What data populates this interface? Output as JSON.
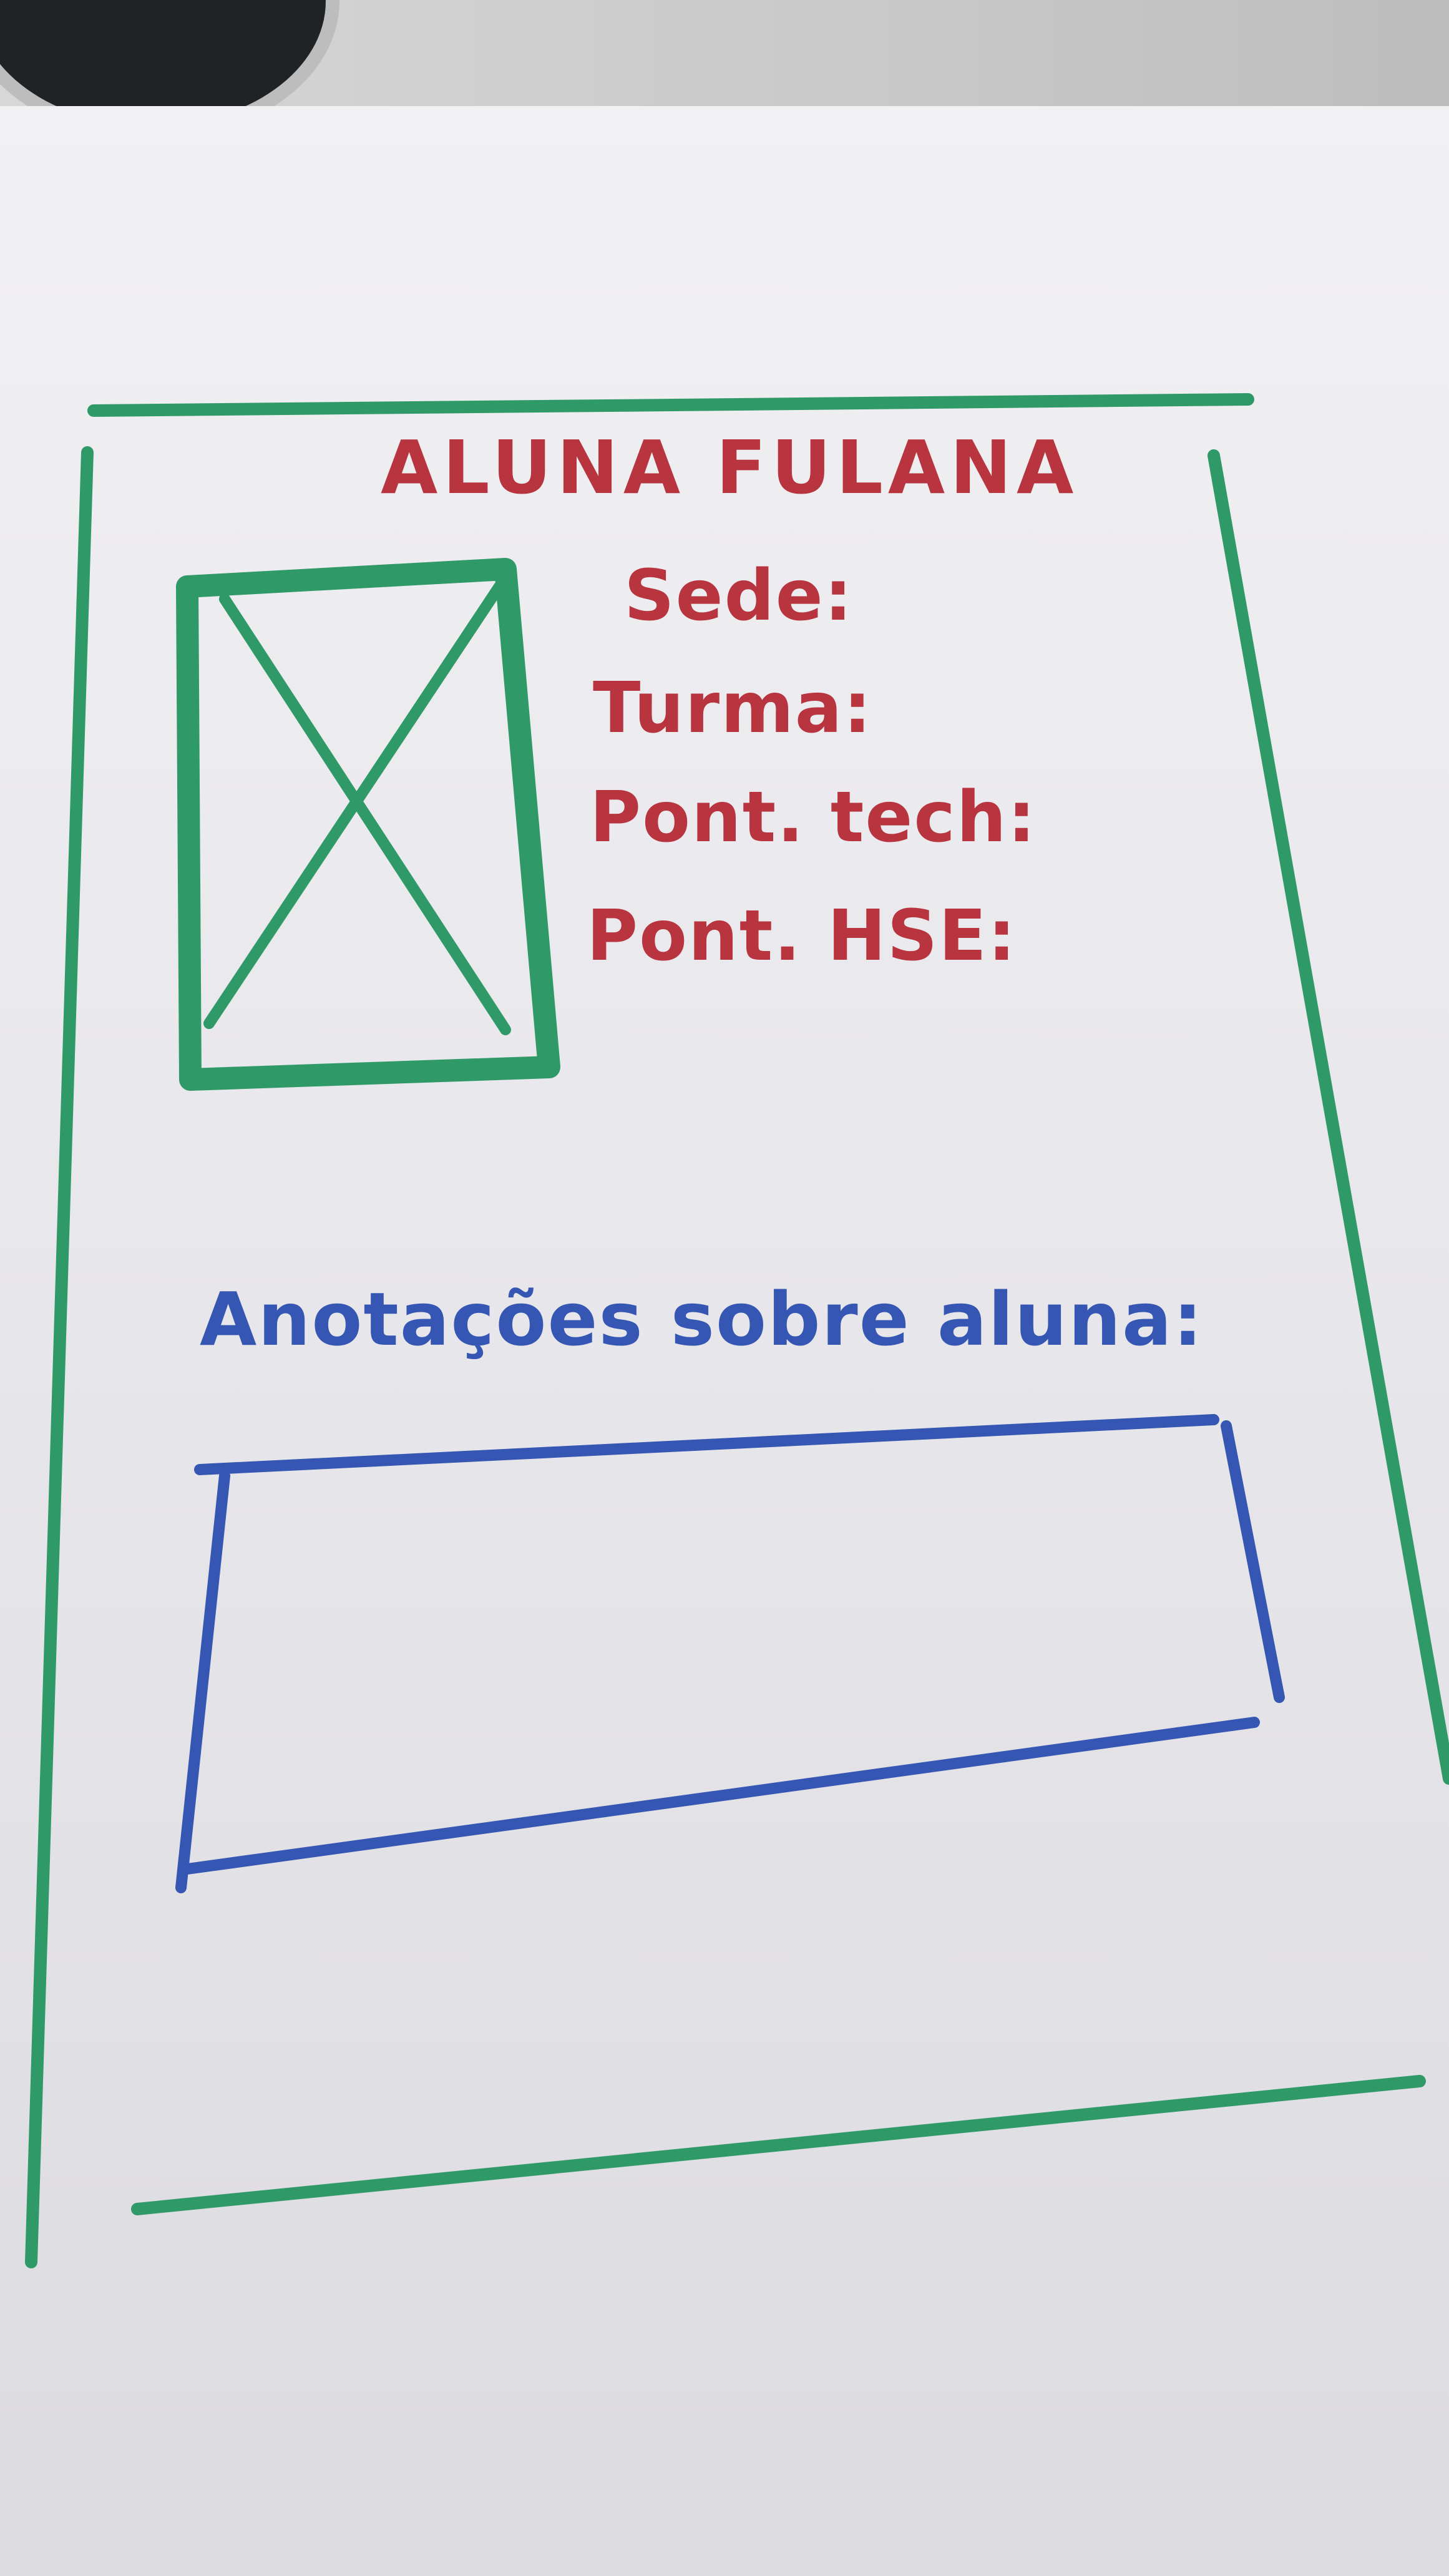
{
  "sketch": {
    "title": "ALUNA FULANA",
    "fields": [
      {
        "label": "Sede:"
      },
      {
        "label": "Turma:"
      },
      {
        "label": "Pont. tech:"
      },
      {
        "label": "Pont. HSE:"
      }
    ],
    "notes_label": "Anotações sobre aluna:"
  },
  "colors": {
    "frame": "#2f9a68",
    "title_text": "#b8343f",
    "notes": "#3556b2"
  },
  "icons": {
    "photo_placeholder": "image-placeholder-icon"
  }
}
